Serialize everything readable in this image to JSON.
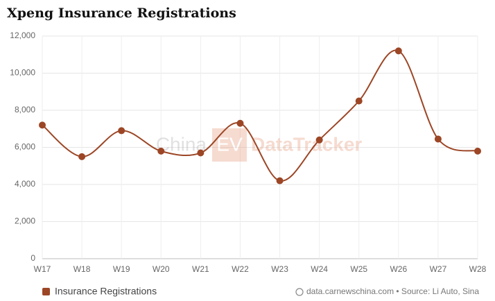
{
  "chart_data": {
    "type": "line",
    "title": "Xpeng Insurance Registrations",
    "categories": [
      "W17",
      "W18",
      "W19",
      "W20",
      "W21",
      "W22",
      "W23",
      "W24",
      "W25",
      "W26",
      "W27",
      "W28"
    ],
    "series": [
      {
        "name": "Insurance Registrations",
        "color": "#9c4626",
        "values": [
          7200,
          5500,
          6900,
          5800,
          5700,
          7300,
          4200,
          6400,
          8500,
          11200,
          6450,
          5800
        ]
      }
    ],
    "ylim": [
      0,
      12000
    ],
    "yticks": [
      0,
      {
        "value": 2000,
        "label": "2,000"
      },
      {
        "value": 4000,
        "label": "4,000"
      },
      {
        "value": 6000,
        "label": "6,000"
      },
      {
        "value": 8000,
        "label": "8,000"
      },
      {
        "value": 10000,
        "label": "10,000"
      },
      {
        "value": 12000,
        "label": "12,000"
      }
    ],
    "grid": true,
    "legend": "bottom-left",
    "watermark": {
      "left": "China",
      "badge": "EV",
      "right": "DataTracker"
    },
    "source": "data.carnewschina.com • Source: Li Auto, Sina"
  }
}
